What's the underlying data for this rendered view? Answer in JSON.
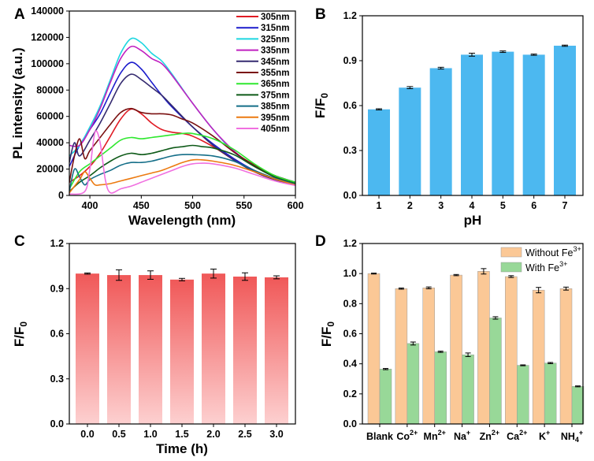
{
  "chart_data": [
    {
      "panel": "A",
      "type": "line",
      "xlabel": "Wavelength (nm)",
      "ylabel": "PL intensity (a.u.)",
      "xlim": [
        380,
        600
      ],
      "ylim": [
        0,
        140000
      ],
      "xticks": [
        400,
        450,
        500,
        550,
        600
      ],
      "yticks": [
        0,
        20000,
        40000,
        60000,
        80000,
        100000,
        120000,
        140000
      ],
      "series": [
        {
          "name": "305nm",
          "color": "#e01b24",
          "points": [
            [
              380,
              10000
            ],
            [
              390,
              15000
            ],
            [
              400,
              22000
            ],
            [
              410,
              32000
            ],
            [
              420,
              45000
            ],
            [
              430,
              58000
            ],
            [
              440,
              65500
            ],
            [
              450,
              62000
            ],
            [
              460,
              55000
            ],
            [
              470,
              50000
            ],
            [
              480,
              48000
            ],
            [
              490,
              47000
            ],
            [
              500,
              45000
            ],
            [
              520,
              37000
            ],
            [
              540,
              27000
            ],
            [
              560,
              18000
            ],
            [
              580,
              12000
            ],
            [
              600,
              8000
            ]
          ]
        },
        {
          "name": "315nm",
          "color": "#1c1ccc",
          "points": [
            [
              380,
              22000
            ],
            [
              390,
              38000
            ],
            [
              400,
              50000
            ],
            [
              410,
              62000
            ],
            [
              420,
              78000
            ],
            [
              430,
              93000
            ],
            [
              440,
              101000
            ],
            [
              450,
              96000
            ],
            [
              460,
              86000
            ],
            [
              470,
              76000
            ],
            [
              480,
              67000
            ],
            [
              500,
              52000
            ],
            [
              520,
              39000
            ],
            [
              540,
              28000
            ],
            [
              560,
              19000
            ],
            [
              580,
              13000
            ],
            [
              600,
              9000
            ]
          ]
        },
        {
          "name": "325nm",
          "color": "#1cd6e0",
          "points": [
            [
              380,
              30000
            ],
            [
              390,
              38000
            ],
            [
              400,
              52000
            ],
            [
              410,
              68000
            ],
            [
              420,
              88000
            ],
            [
              430,
              108000
            ],
            [
              440,
              119000
            ],
            [
              450,
              116000
            ],
            [
              460,
              108000
            ],
            [
              470,
              102000
            ],
            [
              480,
              92000
            ],
            [
              500,
              70000
            ],
            [
              520,
              50000
            ],
            [
              540,
              33000
            ],
            [
              560,
              22000
            ],
            [
              580,
              15000
            ],
            [
              600,
              10000
            ]
          ]
        },
        {
          "name": "335nm",
          "color": "#c020c0",
          "points": [
            [
              380,
              38000
            ],
            [
              390,
              38000
            ],
            [
              400,
              50000
            ],
            [
              410,
              66000
            ],
            [
              420,
              86000
            ],
            [
              430,
              104000
            ],
            [
              440,
              113000
            ],
            [
              450,
              110000
            ],
            [
              460,
              104000
            ],
            [
              470,
              100000
            ],
            [
              480,
              91000
            ],
            [
              500,
              70000
            ],
            [
              520,
              50000
            ],
            [
              540,
              34000
            ],
            [
              560,
              22000
            ],
            [
              580,
              15000
            ],
            [
              600,
              10000
            ]
          ]
        },
        {
          "name": "345nm",
          "color": "#352b70",
          "points": [
            [
              380,
              25000
            ],
            [
              385,
              40000
            ],
            [
              390,
              30000
            ],
            [
              400,
              42000
            ],
            [
              410,
              55000
            ],
            [
              420,
              70000
            ],
            [
              430,
              85000
            ],
            [
              440,
              92000
            ],
            [
              450,
              88000
            ],
            [
              460,
              82000
            ],
            [
              470,
              76000
            ],
            [
              480,
              68000
            ],
            [
              500,
              52000
            ],
            [
              520,
              38000
            ],
            [
              540,
              27000
            ],
            [
              560,
              18000
            ],
            [
              580,
              12000
            ],
            [
              600,
              8000
            ]
          ]
        },
        {
          "name": "355nm",
          "color": "#7a1010",
          "points": [
            [
              380,
              10000
            ],
            [
              385,
              30000
            ],
            [
              390,
              43000
            ],
            [
              395,
              28000
            ],
            [
              400,
              34000
            ],
            [
              410,
              44000
            ],
            [
              420,
              54000
            ],
            [
              430,
              63000
            ],
            [
              440,
              66000
            ],
            [
              450,
              63000
            ],
            [
              460,
              62000
            ],
            [
              470,
              62000
            ],
            [
              480,
              61000
            ],
            [
              490,
              58000
            ],
            [
              500,
              55000
            ],
            [
              520,
              45000
            ],
            [
              540,
              33000
            ],
            [
              560,
              23000
            ],
            [
              580,
              15000
            ],
            [
              600,
              10000
            ]
          ]
        },
        {
          "name": "365nm",
          "color": "#2ee82e",
          "points": [
            [
              380,
              5000
            ],
            [
              390,
              18000
            ],
            [
              400,
              24000
            ],
            [
              410,
              30000
            ],
            [
              420,
              36000
            ],
            [
              430,
              42000
            ],
            [
              440,
              44000
            ],
            [
              450,
              43000
            ],
            [
              460,
              44000
            ],
            [
              470,
              45000
            ],
            [
              480,
              46000
            ],
            [
              490,
              47000
            ],
            [
              500,
              47000
            ],
            [
              520,
              43000
            ],
            [
              540,
              35000
            ],
            [
              560,
              24000
            ],
            [
              580,
              15000
            ],
            [
              600,
              10000
            ]
          ]
        },
        {
          "name": "375nm",
          "color": "#0e5a18",
          "points": [
            [
              380,
              3000
            ],
            [
              390,
              10000
            ],
            [
              400,
              15000
            ],
            [
              410,
              21000
            ],
            [
              420,
              26000
            ],
            [
              430,
              30000
            ],
            [
              440,
              32000
            ],
            [
              450,
              31000
            ],
            [
              460,
              32000
            ],
            [
              470,
              34000
            ],
            [
              480,
              36000
            ],
            [
              490,
              37000
            ],
            [
              500,
              38000
            ],
            [
              510,
              37000
            ],
            [
              520,
              36000
            ],
            [
              540,
              31000
            ],
            [
              560,
              22000
            ],
            [
              580,
              14000
            ],
            [
              600,
              9000
            ]
          ]
        },
        {
          "name": "385nm",
          "color": "#146e88",
          "points": [
            [
              380,
              3000
            ],
            [
              385,
              20000
            ],
            [
              390,
              14000
            ],
            [
              395,
              8000
            ],
            [
              400,
              12000
            ],
            [
              410,
              16000
            ],
            [
              420,
              19000
            ],
            [
              430,
              23000
            ],
            [
              440,
              25000
            ],
            [
              450,
              25000
            ],
            [
              460,
              26000
            ],
            [
              470,
              28000
            ],
            [
              480,
              30000
            ],
            [
              490,
              31000
            ],
            [
              500,
              31000
            ],
            [
              520,
              30000
            ],
            [
              540,
              26000
            ],
            [
              560,
              19000
            ],
            [
              580,
              13000
            ],
            [
              600,
              8500
            ]
          ]
        },
        {
          "name": "395nm",
          "color": "#ec7a10",
          "points": [
            [
              380,
              2000
            ],
            [
              390,
              12000
            ],
            [
              395,
              18000
            ],
            [
              400,
              13000
            ],
            [
              405,
              8000
            ],
            [
              410,
              8000
            ],
            [
              420,
              9000
            ],
            [
              430,
              11000
            ],
            [
              440,
              13000
            ],
            [
              450,
              15000
            ],
            [
              460,
              17000
            ],
            [
              470,
              19000
            ],
            [
              480,
              22000
            ],
            [
              490,
              25000
            ],
            [
              500,
              27000
            ],
            [
              510,
              27000
            ],
            [
              520,
              26000
            ],
            [
              540,
              23000
            ],
            [
              560,
              18000
            ],
            [
              580,
              12500
            ],
            [
              600,
              8000
            ]
          ]
        },
        {
          "name": "405nm",
          "color": "#f070e0",
          "points": [
            [
              380,
              1000
            ],
            [
              395,
              3000
            ],
            [
              400,
              20000
            ],
            [
              405,
              48000
            ],
            [
              410,
              40000
            ],
            [
              415,
              12000
            ],
            [
              420,
              2000
            ],
            [
              430,
              5000
            ],
            [
              440,
              7000
            ],
            [
              450,
              10000
            ],
            [
              460,
              13000
            ],
            [
              470,
              16000
            ],
            [
              480,
              19000
            ],
            [
              490,
              22000
            ],
            [
              500,
              24000
            ],
            [
              510,
              24500
            ],
            [
              520,
              24000
            ],
            [
              540,
              21000
            ],
            [
              560,
              16000
            ],
            [
              580,
              11000
            ],
            [
              600,
              7500
            ]
          ]
        }
      ]
    },
    {
      "panel": "B",
      "type": "bar",
      "xlabel": "pH",
      "ylabel": "F/F0",
      "ylim": [
        0,
        1.2
      ],
      "yticks": [
        0.0,
        0.3,
        0.6,
        0.9,
        1.2
      ],
      "color": "#4cb8f0",
      "categories": [
        "1",
        "2",
        "3",
        "4",
        "5",
        "6",
        "7"
      ],
      "values": [
        0.575,
        0.72,
        0.85,
        0.94,
        0.96,
        0.94,
        1.0
      ],
      "errors": [
        0.004,
        0.007,
        0.006,
        0.01,
        0.005,
        0.004,
        0.004
      ]
    },
    {
      "panel": "C",
      "type": "bar",
      "xlabel": "Time (h)",
      "ylabel": "F/F0",
      "ylim": [
        0,
        1.2
      ],
      "yticks": [
        0.0,
        0.3,
        0.6,
        0.9,
        1.2
      ],
      "color_top": "#f05858",
      "color_bottom": "#fcc8c8",
      "categories": [
        "0.0",
        "0.5",
        "1.0",
        "1.5",
        "2.0",
        "2.5",
        "3.0"
      ],
      "values": [
        1.0,
        0.99,
        0.99,
        0.96,
        1.0,
        0.98,
        0.975
      ],
      "errors": [
        0.004,
        0.035,
        0.028,
        0.008,
        0.03,
        0.025,
        0.01
      ]
    },
    {
      "panel": "D",
      "type": "bar",
      "xlabel": "",
      "ylabel": "F/F0",
      "ylim": [
        0,
        1.2
      ],
      "yticks": [
        0.0,
        0.2,
        0.4,
        0.6,
        0.8,
        1.0,
        1.2
      ],
      "categories": [
        "Blank",
        "Co2+",
        "Mn2+",
        "Na+",
        "Zn2+",
        "Ca2+",
        "K+",
        "NH4+"
      ],
      "category_labels": [
        {
          "base": "Blank",
          "sup": "",
          "sub": ""
        },
        {
          "base": "Co",
          "sup": "2+",
          "sub": ""
        },
        {
          "base": "Mn",
          "sup": "2+",
          "sub": ""
        },
        {
          "base": "Na",
          "sup": "+",
          "sub": ""
        },
        {
          "base": "Zn",
          "sup": "2+",
          "sub": ""
        },
        {
          "base": "Ca",
          "sup": "2+",
          "sub": ""
        },
        {
          "base": "K",
          "sup": "+",
          "sub": ""
        },
        {
          "base": "NH",
          "sup": "+",
          "sub": "4"
        }
      ],
      "series": [
        {
          "name": "Without Fe3+",
          "legend_base": "Without Fe",
          "legend_sup": "3+",
          "color": "#fbc896",
          "values": [
            1.0,
            0.9,
            0.905,
            0.99,
            1.015,
            0.98,
            0.89,
            0.9
          ],
          "errors": [
            0.003,
            0.004,
            0.006,
            0.004,
            0.018,
            0.006,
            0.018,
            0.01
          ]
        },
        {
          "name": "With Fe3+",
          "legend_base": "With Fe",
          "legend_sup": "3+",
          "color": "#98d898",
          "values": [
            0.365,
            0.535,
            0.48,
            0.46,
            0.705,
            0.39,
            0.405,
            0.25
          ],
          "errors": [
            0.004,
            0.01,
            0.004,
            0.012,
            0.008,
            0.003,
            0.004,
            0.003
          ]
        }
      ]
    }
  ],
  "labels": {
    "panel_a": "A",
    "panel_b": "B",
    "panel_c": "C",
    "panel_d": "D",
    "ylabel_a": "PL intensity (a.u.)",
    "xlabel_a": "Wavelength (nm)",
    "ylabel_b_base": "F/F",
    "ylabel_b_sub": "0",
    "xlabel_b": "pH",
    "ylabel_c_base": "F/F",
    "ylabel_c_sub": "0",
    "xlabel_c": "Time (h)",
    "ylabel_d_base": "F/F",
    "ylabel_d_sub": "0"
  }
}
